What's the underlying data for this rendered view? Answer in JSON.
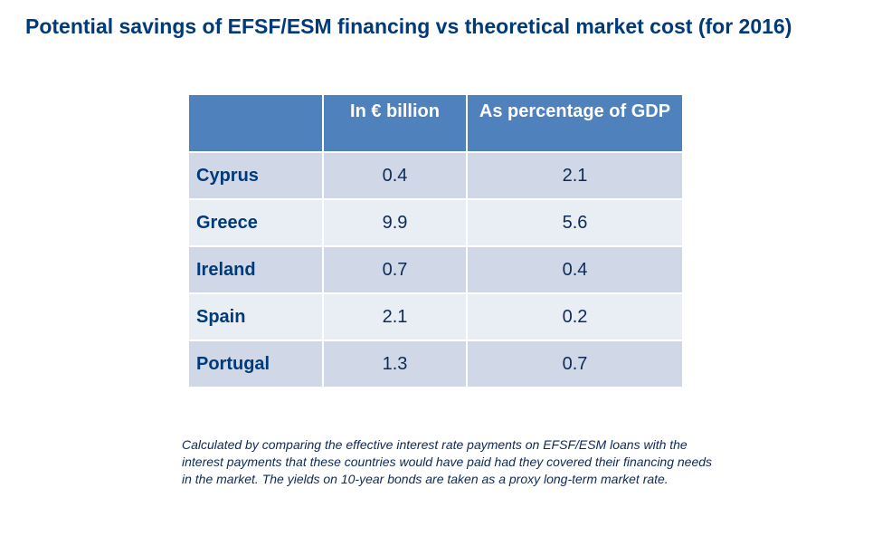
{
  "title": "Potential savings of EFSF/ESM financing vs theoretical market cost (for 2016)",
  "table": {
    "headers": [
      "",
      "In € billion",
      "As percentage of GDP"
    ],
    "rows": [
      {
        "country": "Cyprus",
        "billion": "0.4",
        "pct_gdp": "2.1"
      },
      {
        "country": "Greece",
        "billion": "9.9",
        "pct_gdp": "5.6"
      },
      {
        "country": "Ireland",
        "billion": "0.7",
        "pct_gdp": "0.4"
      },
      {
        "country": "Spain",
        "billion": "2.1",
        "pct_gdp": "0.2"
      },
      {
        "country": "Portugal",
        "billion": "1.3",
        "pct_gdp": "0.7"
      }
    ]
  },
  "footnote": "Calculated by comparing the effective interest rate payments on EFSF/ESM loans with the interest payments that these countries would have paid had they covered their financing needs in the market. The yields on 10-year bonds are taken as a proxy long-term market rate.",
  "colors": {
    "title": "#003a78",
    "header_bg": "#4f81bd",
    "row_dark": "#d0d8e8",
    "row_light": "#e9edf4"
  }
}
